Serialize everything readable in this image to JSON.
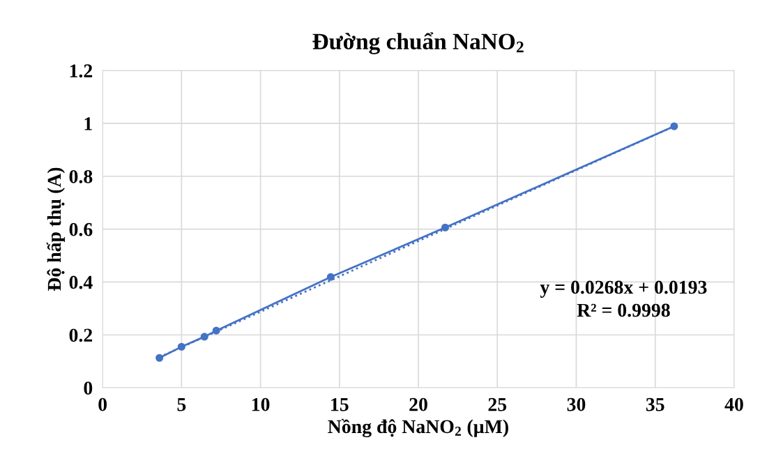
{
  "chart_data": {
    "type": "line",
    "title": "Đường chuẩn NaNO$_{2}$",
    "xlabel": "Nồng độ NaNO$_{2}$ (µM)",
    "ylabel": "Độ hấp thụ (A)",
    "x": [
      3.6,
      5.0,
      6.45,
      7.2,
      14.45,
      21.7,
      36.2
    ],
    "series": [
      {
        "color": "#4472c4",
        "values": [
          0.113,
          0.155,
          0.193,
          0.216,
          0.419,
          0.606,
          0.989
        ],
        "marker": "circle",
        "line_style": "solid"
      },
      {
        "type": "line",
        "color": "#4472c4",
        "x": [
          3.6,
          36.2
        ],
        "values": [
          0.116,
          0.989
        ],
        "marker": "none",
        "line_style": "dotted"
      }
    ],
    "annotations": [
      "y = 0.0268x + 0.0193\nR² = 0.9998"
    ],
    "xlim": [
      0,
      40
    ],
    "xticks": [
      0,
      5,
      10,
      15,
      20,
      25,
      30,
      35,
      40
    ],
    "ylim": [
      0,
      1.2
    ],
    "yticks": [
      0,
      {
        "value": 0.2,
        "label": "0.2"
      },
      {
        "value": 0.4,
        "label": "0.4"
      },
      {
        "value": 0.6,
        "label": "0.6"
      },
      {
        "value": 0.8,
        "label": "0.8"
      },
      1,
      {
        "value": 1.2,
        "label": "1.2"
      }
    ],
    "grid": true,
    "legend": false
  }
}
